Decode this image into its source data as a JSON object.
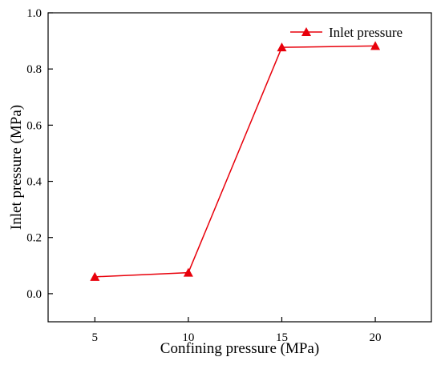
{
  "chart_data": {
    "type": "line",
    "xlabel": "Confining pressure (MPa)",
    "ylabel": "Inlet pressure (MPa)",
    "xlim": [
      2.5,
      23.0
    ],
    "ylim": [
      -0.1,
      1.0
    ],
    "x_ticks": [
      5,
      10,
      15,
      20
    ],
    "y_ticks": [
      0.0,
      0.2,
      0.4,
      0.6,
      0.8,
      1.0
    ],
    "x_tick_labels": [
      "5",
      "10",
      "15",
      "20"
    ],
    "y_tick_labels": [
      "0.0",
      "0.2",
      "0.4",
      "0.6",
      "0.8",
      "1.0"
    ],
    "grid": false,
    "legend_position": "top-right",
    "series": [
      {
        "name": "Inlet pressure",
        "color": "#e8000b",
        "marker": "triangle-up",
        "x": [
          5,
          10,
          15,
          20
        ],
        "y": [
          0.06,
          0.075,
          0.877,
          0.882
        ]
      }
    ]
  }
}
